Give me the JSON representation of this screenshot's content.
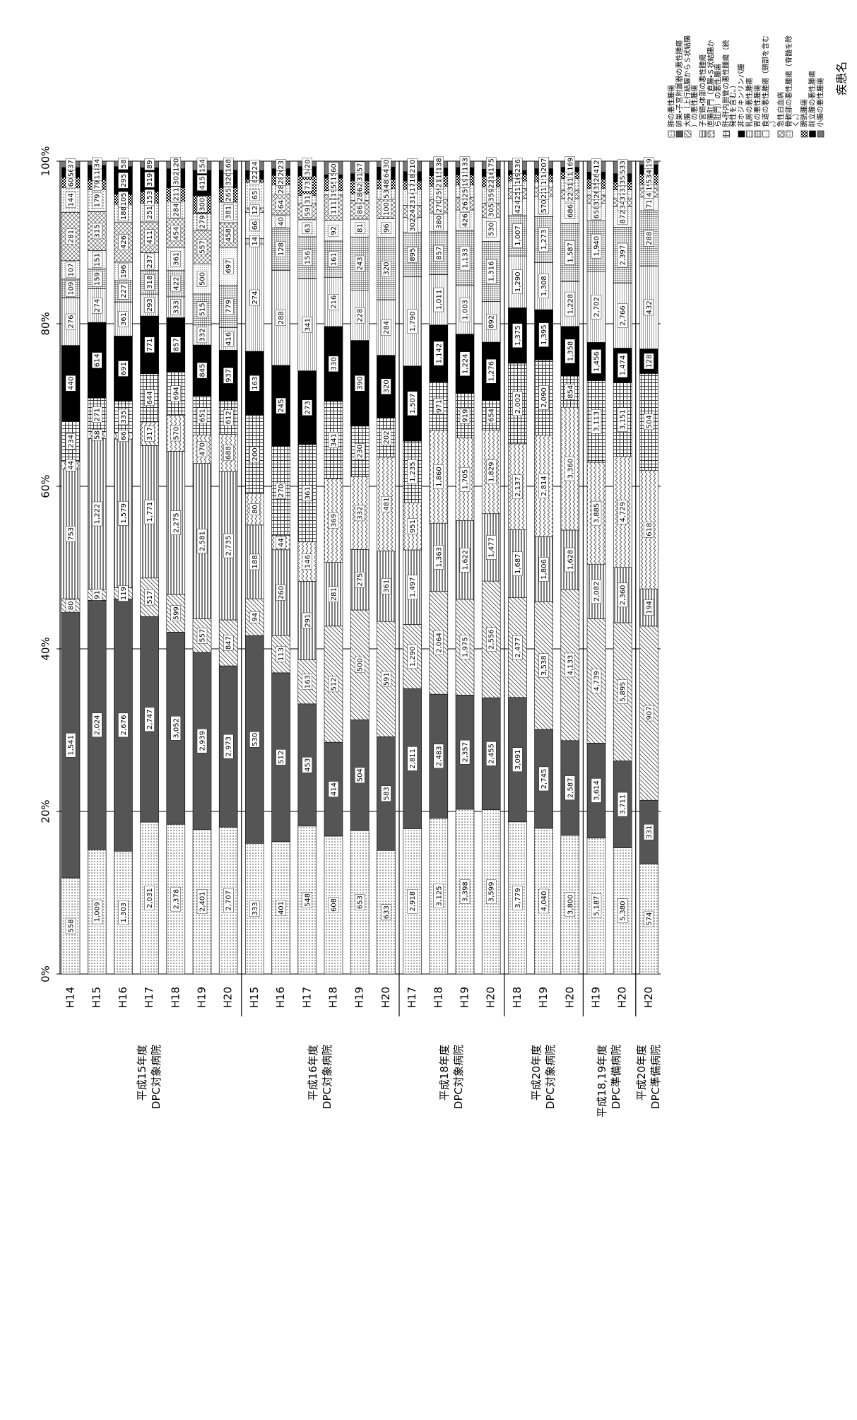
{
  "chart_data": {
    "type": "stacked-bar-100",
    "legend_title": "疾患名",
    "groups": [
      {
        "label": [
          "平成15年度",
          "DPC対象病院"
        ],
        "categories": [
          "H14",
          "H15",
          "H16",
          "H17",
          "H18",
          "H19",
          "H20"
        ]
      },
      {
        "label": [
          "平成16年度",
          "DPC対象病院"
        ],
        "categories": [
          "H15",
          "H16",
          "H17",
          "H18",
          "H19",
          "H20"
        ]
      },
      {
        "label": [
          "平成18年度",
          "DPC対象病院"
        ],
        "categories": [
          "H17",
          "H18",
          "H19",
          "H20"
        ]
      },
      {
        "label": [
          "平成20年度",
          "DPC対象病院"
        ],
        "categories": [
          "H18",
          "H19",
          "H20"
        ]
      },
      {
        "label": [
          "平成18,19年度",
          "DPC準備病院"
        ],
        "categories": [
          "H19",
          "H20"
        ]
      },
      {
        "label": [
          "平成20年度",
          "DPC準備病院"
        ],
        "categories": [
          "H20"
        ]
      }
    ],
    "xlim": [
      0,
      100
    ],
    "xticks": [
      {
        "value": 0,
        "label": "0%"
      },
      {
        "value": 20,
        "label": "20%"
      },
      {
        "value": 40,
        "label": "40%"
      },
      {
        "value": 60,
        "label": "60%"
      },
      {
        "value": 80,
        "label": "80%"
      },
      {
        "value": 100,
        "label": "100%"
      }
    ],
    "grid": true,
    "series": [
      {
        "name": "肺の悪性腫瘍",
        "pattern": "dots",
        "color": "#333333",
        "values": [
          558,
          1009,
          1303,
          2031,
          2378,
          2401,
          2707,
          333,
          401,
          548,
          608,
          653,
          633,
          2918,
          3125,
          3398,
          3599,
          3779,
          4040,
          3800,
          5187,
          5380,
          574
        ],
        "value_labels": [
          "558",
          "1,009",
          "1,303",
          "2,031",
          "2,378",
          "2,401",
          "2,707",
          "333",
          "401",
          "548",
          "608",
          "653",
          "633",
          "2,918",
          "3,125",
          "3,398",
          "3,599",
          "3,779",
          "4,040",
          "3,800",
          "5,187",
          "5,380",
          "574"
        ]
      },
      {
        "name": "卵巣・子宮附属器の悪性腫瘍",
        "pattern": "solid",
        "color": "#555555",
        "values": [
          1541,
          2024,
          2676,
          2747,
          3052,
          2939,
          2973,
          530,
          512,
          453,
          414,
          504,
          583,
          2811,
          2483,
          2357,
          2455,
          3091,
          2745,
          2587,
          3614,
          3711,
          331
        ],
        "value_labels": [
          "1,541",
          "2,024",
          "2,676",
          "2,747",
          "3,052",
          "2,939",
          "2,973",
          "530",
          "512",
          "453",
          "414",
          "504",
          "583",
          "2,811",
          "2,483",
          "2,357",
          "2,455",
          "3,091",
          "2,745",
          "2,587",
          "3,614",
          "3,711",
          "331"
        ]
      },
      {
        "name": "大腸（上行結腸からＳ状結腸）の悪性腫瘍",
        "pattern": "diagonal",
        "color": "#444444",
        "values": [
          80,
          91,
          119,
          517,
          599,
          557,
          847,
          94,
          113,
          163,
          512,
          500,
          591,
          1290,
          2064,
          1975,
          2556,
          2477,
          3538,
          4133,
          4739,
          5895,
          907
        ],
        "value_labels": [
          "80",
          "91",
          "119",
          "517",
          "599",
          "557",
          "847",
          "94",
          "113",
          "163",
          "512",
          "500",
          "591",
          "1,290",
          "2,064",
          "1,975",
          "2,556",
          "2,477",
          "3,538",
          "4,133",
          "4,739",
          "5,895",
          "907"
        ]
      },
      {
        "name": "子宮頸・体部の悪性腫瘍",
        "pattern": "horizontal",
        "color": "#333333",
        "values": [
          753,
          1222,
          1579,
          1771,
          2275,
          2581,
          2735,
          188,
          260,
          291,
          281,
          275,
          361,
          1497,
          1363,
          1622,
          1477,
          1687,
          1806,
          1628,
          2082,
          2360,
          194
        ],
        "value_labels": [
          "753",
          "1,222",
          "1,579",
          "1,771",
          "2,275",
          "2,581",
          "2,735",
          "188",
          "260",
          "291",
          "281",
          "275",
          "361",
          "1,497",
          "1,363",
          "1,622",
          "1,477",
          "1,687",
          "1,806",
          "1,628",
          "2,082",
          "2,360",
          "194"
        ]
      },
      {
        "name": "直腸肛門（直腸・Ｓ状結腸から肛門）の悪性腫瘍",
        "pattern": "zigzag",
        "color": "#555555",
        "values": [
          44,
          58,
          66,
          317,
          570,
          470,
          688,
          80,
          44,
          146,
          369,
          332,
          481,
          951,
          1860,
          1705,
          1829,
          2137,
          2814,
          3360,
          3885,
          4729,
          618
        ],
        "value_labels": [
          "44",
          "58",
          "66",
          "317",
          "570",
          "470",
          "688",
          "80",
          "44",
          "146",
          "369",
          "332",
          "481",
          "951",
          "1,860",
          "1,705",
          "1,829",
          "2,137",
          "2,814",
          "3,360",
          "3,885",
          "4,729",
          "618"
        ]
      },
      {
        "name": "肝・肝内胆管の悪性腫瘍（続発性を含む。）",
        "pattern": "grid",
        "color": "#333333",
        "values": [
          234,
          271,
          335,
          644,
          694,
          651,
          612,
          200,
          270,
          361,
          341,
          230,
          202,
          1235,
          971,
          919,
          654,
          2002,
          2090,
          854,
          3113,
          3151,
          504
        ],
        "value_labels": [
          "234",
          "271",
          "335",
          "644",
          "694",
          "651",
          "612",
          "200",
          "270",
          "361",
          "341",
          "230",
          "202",
          "1,235",
          "971",
          "919",
          "654",
          "2,002",
          "2,090",
          "854",
          "3,113",
          "3,151",
          "504"
        ]
      },
      {
        "name": "非ホジキンリンパ腫",
        "pattern": "solid",
        "color": "#000000",
        "values": [
          440,
          614,
          691,
          771,
          857,
          845,
          937,
          163,
          245,
          273,
          330,
          390,
          320,
          1507,
          1142,
          1224,
          1276,
          1375,
          1395,
          1358,
          1456,
          1474,
          128
        ],
        "value_labels": [
          "440",
          "614",
          "691",
          "771",
          "857",
          "845",
          "937",
          "163",
          "245",
          "273",
          "330",
          "390",
          "320",
          "1,507",
          "1,142",
          "1,224",
          "1,276",
          "1,375",
          "1,395",
          "1,358",
          "1,456",
          "1,474",
          "128"
        ]
      },
      {
        "name": "乳房の悪性腫瘍",
        "pattern": "hlines",
        "color": "#666666",
        "values": [
          276,
          274,
          361,
          293,
          333,
          332,
          416,
          274,
          288,
          341,
          216,
          228,
          284,
          1790,
          1011,
          1003,
          892,
          1290,
          1308,
          1228,
          2702,
          2766,
          432
        ],
        "value_labels": [
          "276",
          "274",
          "361",
          "293",
          "333",
          "332",
          "416",
          "274",
          "288",
          "341",
          "216",
          "228",
          "284",
          "1,790",
          "1,011",
          "1,003",
          "892",
          "1,290",
          "1,308",
          "1,228",
          "2,702",
          "2,766",
          "432"
        ]
      },
      {
        "name": "胃の悪性腫瘍",
        "pattern": "finegrid",
        "color": "#444444",
        "values": [
          109,
          159,
          227,
          318,
          422,
          515,
          779,
          14,
          128,
          156,
          161,
          243,
          320,
          895,
          857,
          1133,
          1316,
          1007,
          1273,
          1587,
          1940,
          2397,
          288
        ],
        "value_labels": [
          "109",
          "159",
          "227",
          "318",
          "422",
          "515",
          "779",
          "14",
          "128",
          "156",
          "161",
          "243",
          "320",
          "895",
          "857",
          "1,133",
          "1,316",
          "1,007",
          "1,273",
          "1,587",
          "1,940",
          "2,397",
          "288"
        ]
      },
      {
        "name": "食道の悪性腫瘍（頸部を含む。）",
        "pattern": "lightdots",
        "color": "#888888",
        "values": [
          107,
          151,
          196,
          237,
          361,
          500,
          697,
          66,
          40,
          63,
          92,
          81,
          96,
          302,
          380,
          426,
          530,
          424,
          570,
          686,
          658,
          872,
          71
        ]
      },
      {
        "name": "急性白血病",
        "pattern": "crosshatch",
        "color": "#555555",
        "values": [
          281,
          315,
          426,
          411,
          454,
          557,
          458,
          12,
          64,
          59,
          111,
          86,
          100,
          242,
          270,
          261,
          305,
          250,
          228,
          228,
          313,
          343,
          47
        ]
      },
      {
        "name": "骨軟部の悪性腫瘍（脊髄を除く。）",
        "pattern": "dots",
        "color": "#444444",
        "values": [
          144,
          179,
          188,
          251,
          284,
          279,
          381,
          65,
          28,
          31,
          19,
          28,
          53,
          314,
          259,
          259,
          359,
          179,
          172,
          317,
          264,
          374,
          19
        ]
      },
      {
        "name": "膀胱腫瘍",
        "pattern": "checker",
        "color": "#000000",
        "values": [
          60,
          79,
          105,
          153,
          211,
          300,
          265,
          8,
          28,
          73,
          55,
          62,
          48,
          175,
          214,
          199,
          229,
          164,
          192,
          181,
          352,
          336,
          53
        ]
      },
      {
        "name": "前立腺の悪性腫瘍",
        "pattern": "solid",
        "color": "#000000",
        "values": [
          56,
          118,
          295,
          319,
          302,
          415,
          320,
          22,
          20,
          34,
          15,
          31,
          64,
          186,
          154,
          155,
          160,
          94,
          169,
          127,
          268,
          355,
          49
        ]
      },
      {
        "name": "小腸の悪性腫瘍",
        "pattern": "solid",
        "color": "#777777",
        "values": [
          37,
          34,
          58,
          89,
          120,
          154,
          168,
          24,
          23,
          20,
          60,
          57,
          30,
          210,
          138,
          133,
          175,
          236,
          207,
          169,
          412,
          533,
          19
        ]
      }
    ]
  }
}
